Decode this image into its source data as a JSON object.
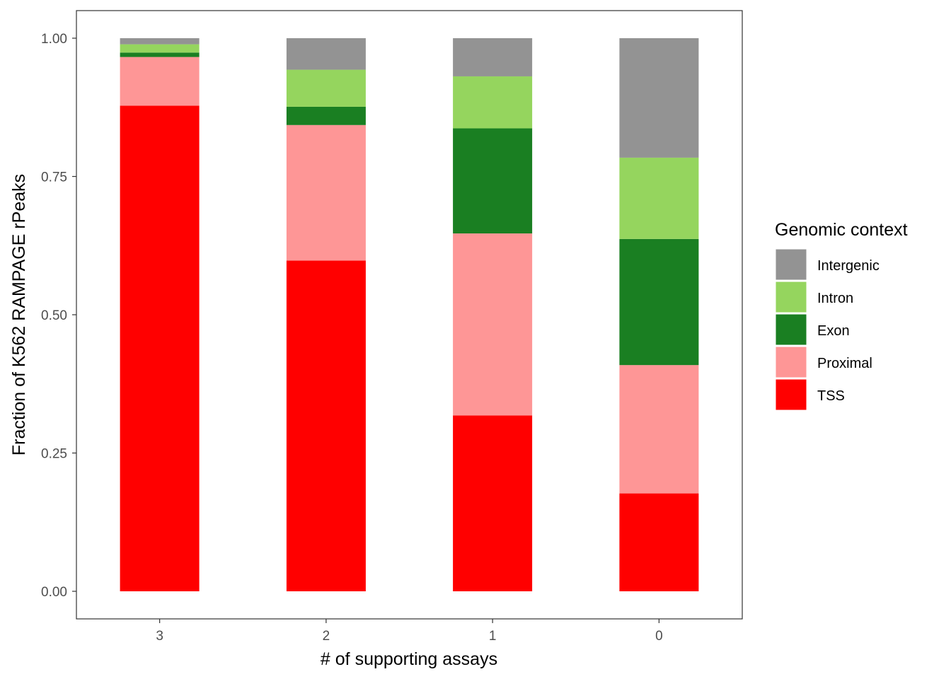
{
  "chart_data": {
    "type": "bar",
    "stacked": true,
    "categories": [
      "3",
      "2",
      "1",
      "0"
    ],
    "xlabel": "# of supporting assays",
    "ylabel": "Fraction of K562 RAMPAGE rPeaks",
    "ylim": [
      0,
      1
    ],
    "yticks": [
      "0.00",
      "0.25",
      "0.50",
      "0.75",
      "1.00"
    ],
    "ytick_values": [
      0,
      0.25,
      0.5,
      0.75,
      1.0
    ],
    "grid": false,
    "legend": {
      "title": "Genomic context",
      "placement": "right",
      "order": [
        "Intergenic",
        "Intron",
        "Exon",
        "Proximal",
        "TSS"
      ]
    },
    "series": [
      {
        "name": "TSS",
        "color": "#ff0000",
        "values": [
          0.878,
          0.598,
          0.318,
          0.177
        ]
      },
      {
        "name": "Proximal",
        "color": "#fe9696",
        "values": [
          0.088,
          0.245,
          0.329,
          0.232
        ]
      },
      {
        "name": "Exon",
        "color": "#1a7f22",
        "values": [
          0.008,
          0.033,
          0.19,
          0.228
        ]
      },
      {
        "name": "Intron",
        "color": "#95d55e",
        "values": [
          0.015,
          0.067,
          0.094,
          0.147
        ]
      },
      {
        "name": "Intergenic",
        "color": "#939393",
        "values": [
          0.011,
          0.057,
          0.069,
          0.216
        ]
      }
    ]
  }
}
